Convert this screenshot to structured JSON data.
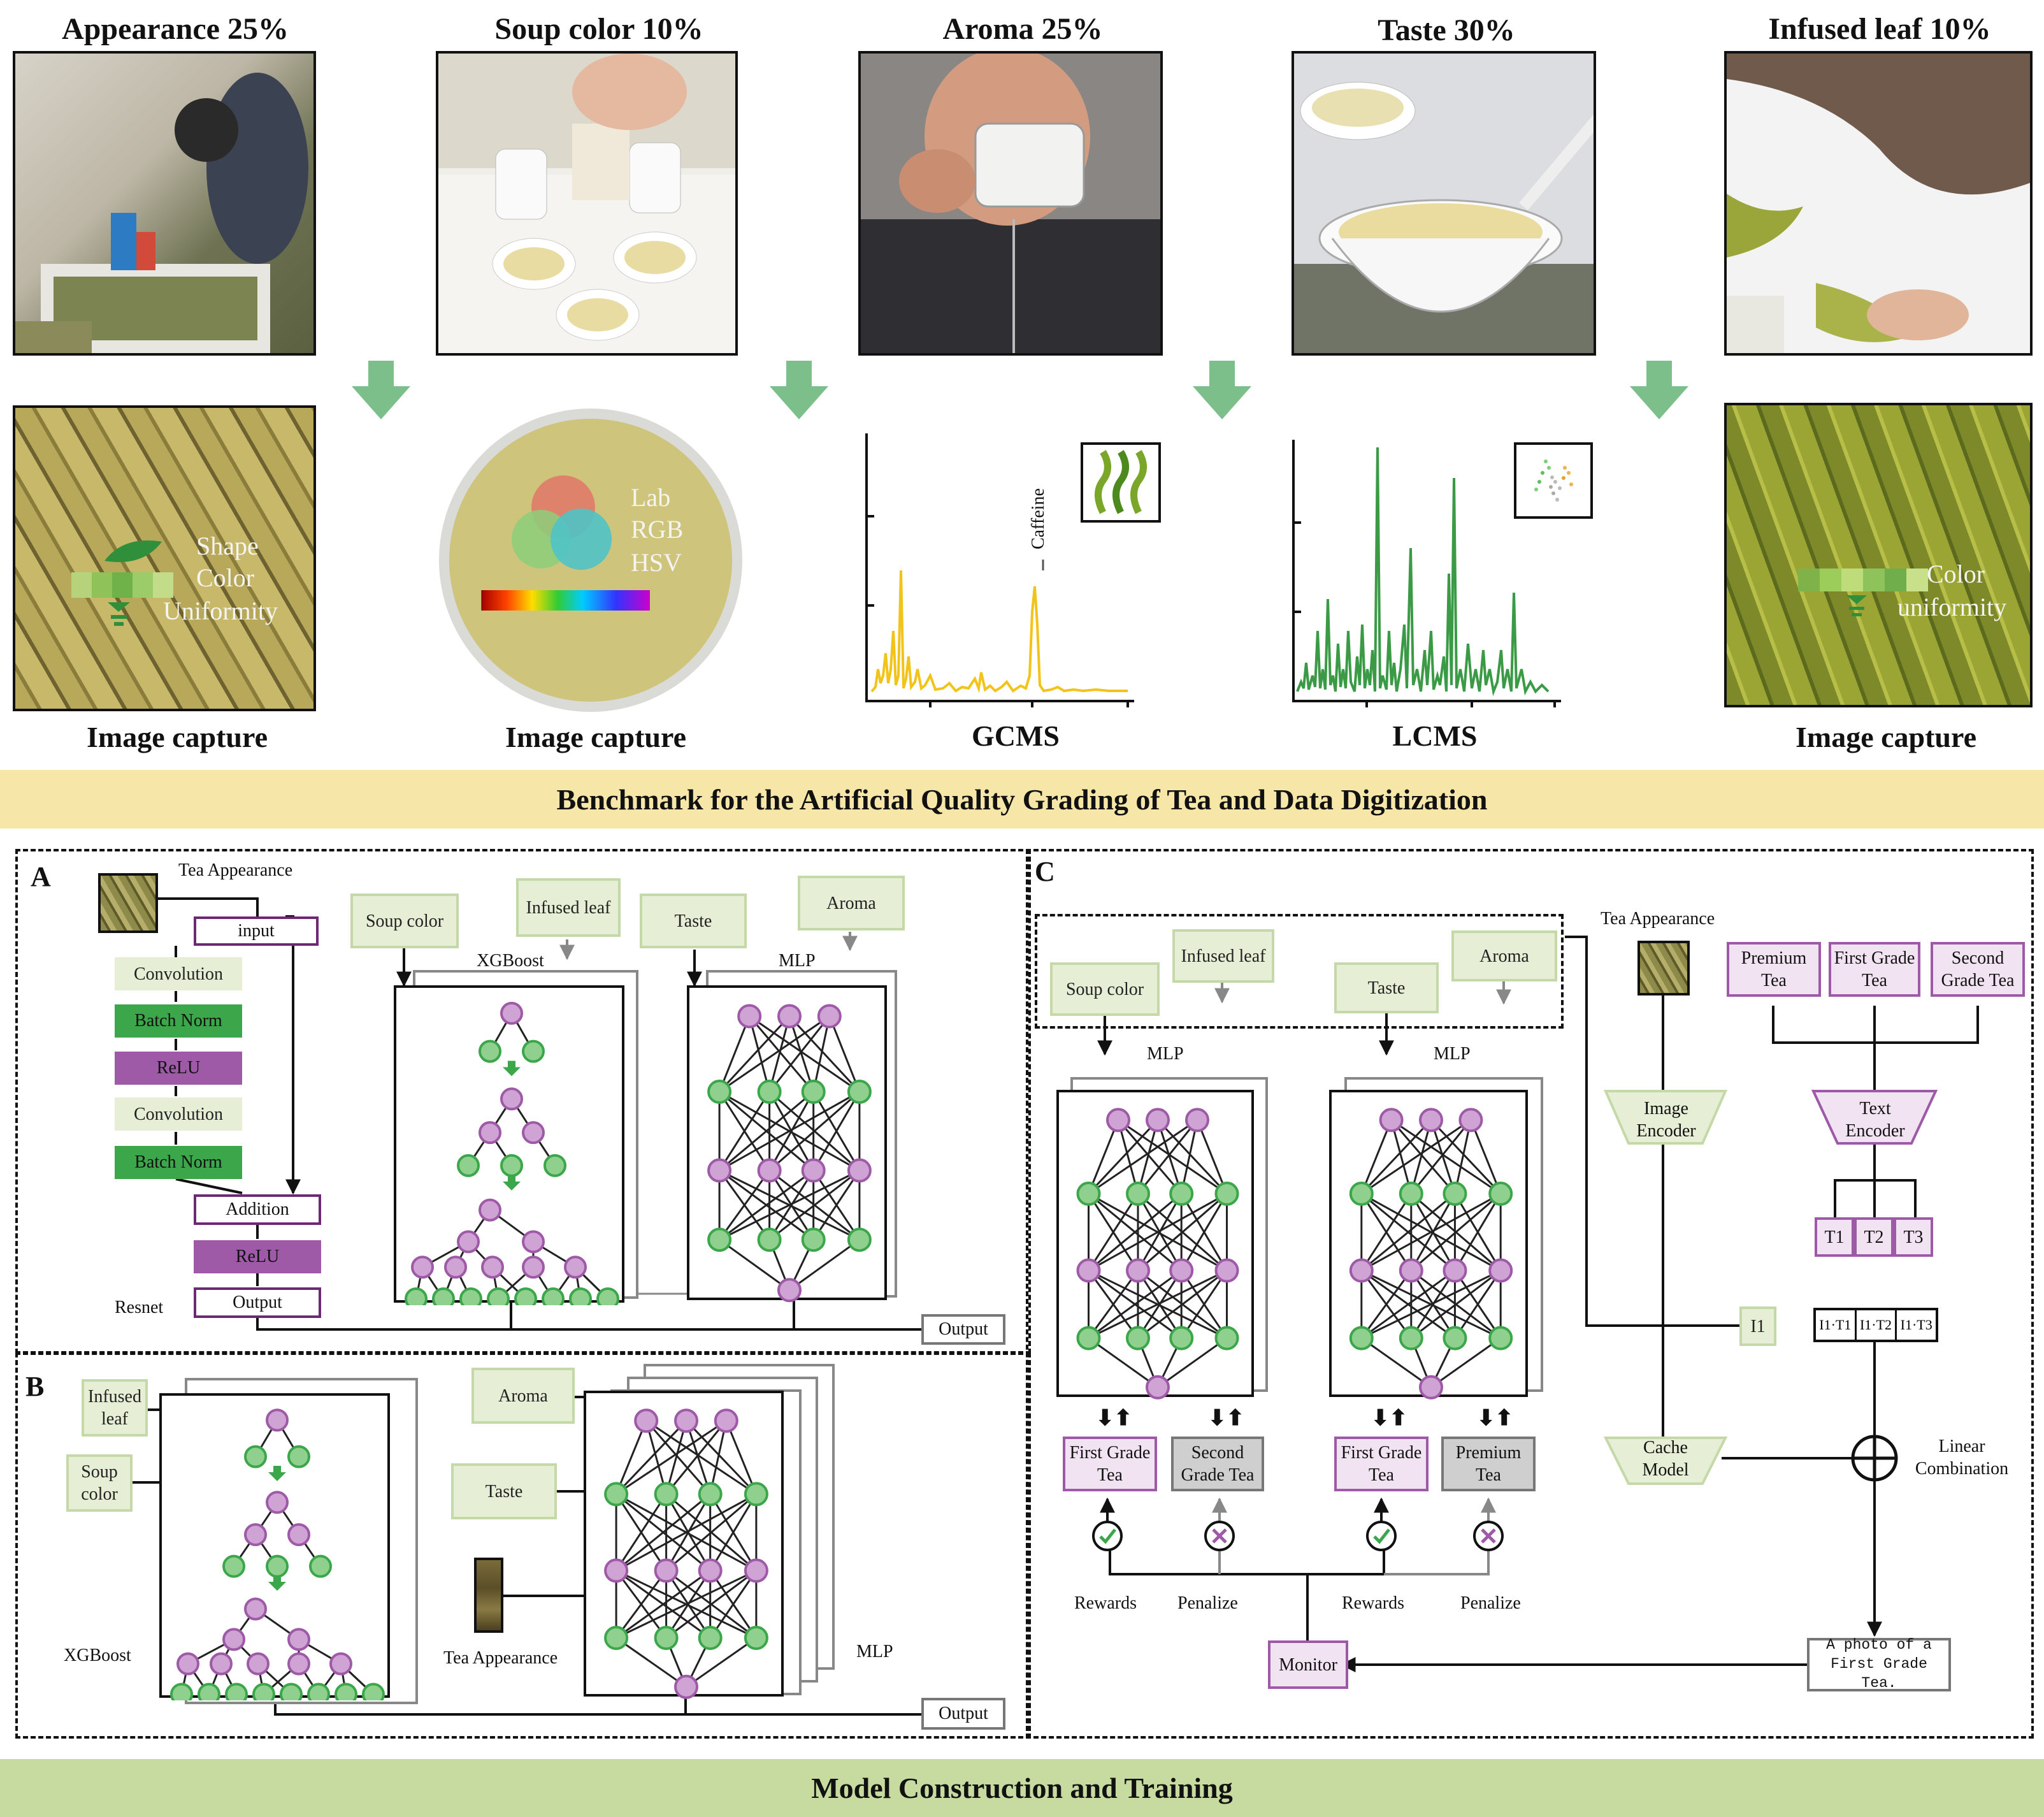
{
  "criteria": [
    {
      "label": "Appearance  25%",
      "capture": "Image capture"
    },
    {
      "label": "Soup color  10%",
      "capture": "Image capture"
    },
    {
      "label": "Aroma  25%",
      "capture": "GCMS"
    },
    {
      "label": "Taste  30%",
      "capture": "LCMS"
    },
    {
      "label": "Infused leaf  10%",
      "capture": "Image capture"
    }
  ],
  "overlays": {
    "appearance": [
      "Shape",
      "Color",
      "Uniformity"
    ],
    "soup": [
      "Lab",
      "RGB",
      "HSV"
    ],
    "gcms_peak": "Caffeine",
    "infused": [
      "Color",
      "uniformity"
    ]
  },
  "banner_top": "Benchmark for the Artificial Quality Grading of Tea and Data Digitization",
  "banner_bottom": "Model Construction and Training",
  "panelA": {
    "letter": "A",
    "tea_appearance": "Tea Appearance",
    "resnet_layers": [
      "input",
      "Convolution",
      "Batch Norm",
      "ReLU",
      "Convolution",
      "Batch Norm",
      "Addition",
      "ReLU",
      "Output"
    ],
    "resnet": "Resnet",
    "inputs": [
      "Soup color",
      "Infused leaf",
      "Taste",
      "Aroma"
    ],
    "xgboost": "XGBoost",
    "mlp": "MLP",
    "output": "Output"
  },
  "panelB": {
    "letter": "B",
    "infused_leaf": "Infused leaf",
    "soup_color": "Soup color",
    "xgboost": "XGBoost",
    "aroma": "Aroma",
    "taste": "Taste",
    "tea_appearance": "Tea Appearance",
    "mlp": "MLP",
    "output": "Output"
  },
  "panelC": {
    "letter": "C",
    "inputs": [
      "Soup color",
      "Infused leaf",
      "Taste",
      "Aroma"
    ],
    "mlp": "MLP",
    "grades_left": [
      "First Grade Tea",
      "Second Grade Tea"
    ],
    "grades_right": [
      "First Grade Tea",
      "Premium Tea"
    ],
    "rewards": "Rewards",
    "penalize": "Penalize",
    "monitor": "Monitor",
    "tea_appearance": "Tea Appearance",
    "text_classes": [
      "Premium Tea",
      "First Grade Tea",
      "Second Grade Tea"
    ],
    "image_encoder": "Image Encoder",
    "text_encoder": "Text Encoder",
    "t_tokens": [
      "T1",
      "T2",
      "T3"
    ],
    "i_token": "I1",
    "dots": [
      "I1·T1",
      "I1·T2",
      "I1·T3"
    ],
    "cache_model": "Cache Model",
    "linear_combination": "Linear Combination",
    "prompt": "A photo of a First Grade Tea."
  },
  "colors": {
    "green": "#3ba64a",
    "light_green": "#e6efd5",
    "purple": "#9e5aa7",
    "light_purple": "#f2e3f3",
    "banner_top": "#f6e7a9",
    "banner_bottom": "#c7dba0",
    "arrow_green": "#7cbf8a"
  }
}
